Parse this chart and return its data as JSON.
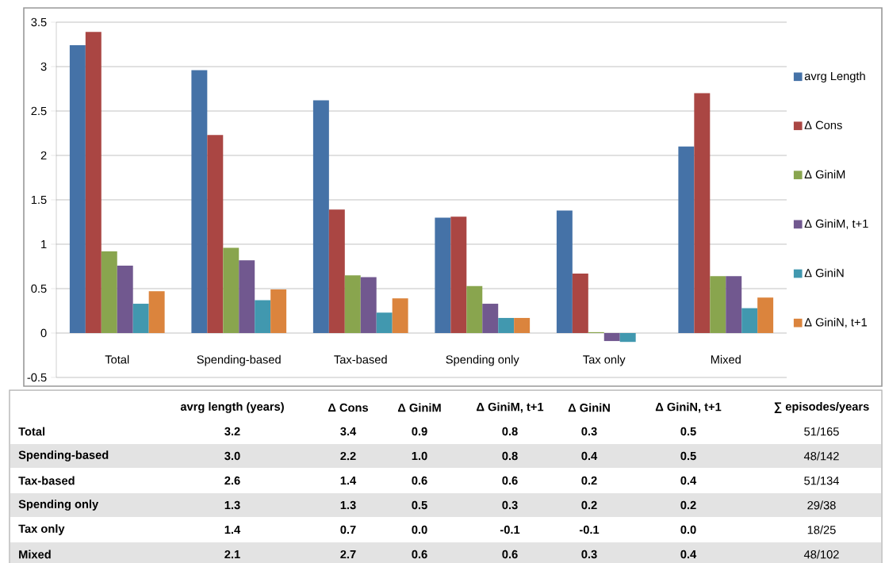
{
  "chart_data": {
    "type": "bar",
    "categories": [
      "Total",
      "Spending-based",
      "Tax-based",
      "Spending only",
      "Tax only",
      "Mixed"
    ],
    "series": [
      {
        "name": "avrg Length",
        "color": "#4572a7",
        "values": [
          3.24,
          2.96,
          2.62,
          1.3,
          1.38,
          2.1
        ]
      },
      {
        "name": "Δ Cons",
        "color": "#aa4643",
        "values": [
          3.39,
          2.23,
          1.39,
          1.31,
          0.67,
          2.7
        ]
      },
      {
        "name": "Δ GiniM",
        "color": "#89a54e",
        "values": [
          0.92,
          0.96,
          0.65,
          0.53,
          0.01,
          0.64
        ]
      },
      {
        "name": "Δ GiniM, t+1",
        "color": "#71588f",
        "values": [
          0.76,
          0.82,
          0.63,
          0.33,
          -0.09,
          0.64
        ]
      },
      {
        "name": "Δ GiniN",
        "color": "#4198af",
        "values": [
          0.33,
          0.37,
          0.23,
          0.17,
          -0.1,
          0.28
        ]
      },
      {
        "name": "Δ GiniN, t+1",
        "color": "#db843d",
        "values": [
          0.47,
          0.49,
          0.39,
          0.17,
          0.0,
          0.4
        ]
      }
    ],
    "ylim": [
      -0.5,
      3.5
    ],
    "yticks": [
      -0.5,
      0,
      0.5,
      1,
      1.5,
      2,
      2.5,
      3,
      3.5
    ],
    "grid": "y",
    "legend": "right",
    "annotations": [
      "avrg length (years)",
      "Δ Cons",
      "Δ GiniM",
      "Δ GiniM, t+1",
      "Δ GiniN",
      "Δ GiniN, t+1",
      "∑ episodes/years",
      "3.2",
      "3.4",
      "0.9",
      "0.8",
      "0.3",
      "0.5",
      "51/165",
      "3.0",
      "2.2",
      "1.0",
      "0.8",
      "0.4",
      "0.5",
      "48/142",
      "2.6",
      "1.4",
      "0.6",
      "0.6",
      "0.2",
      "0.4",
      "51/134",
      "1.3",
      "1.3",
      "0.5",
      "0.3",
      "0.2",
      "0.2",
      "29/38",
      "1.4",
      "0.7",
      "0.0",
      "-0.1",
      "-0.1",
      "0.0",
      "18/25",
      "2.1",
      "2.7",
      "0.6",
      "0.6",
      "0.3",
      "0.4",
      "48/102"
    ]
  }
}
